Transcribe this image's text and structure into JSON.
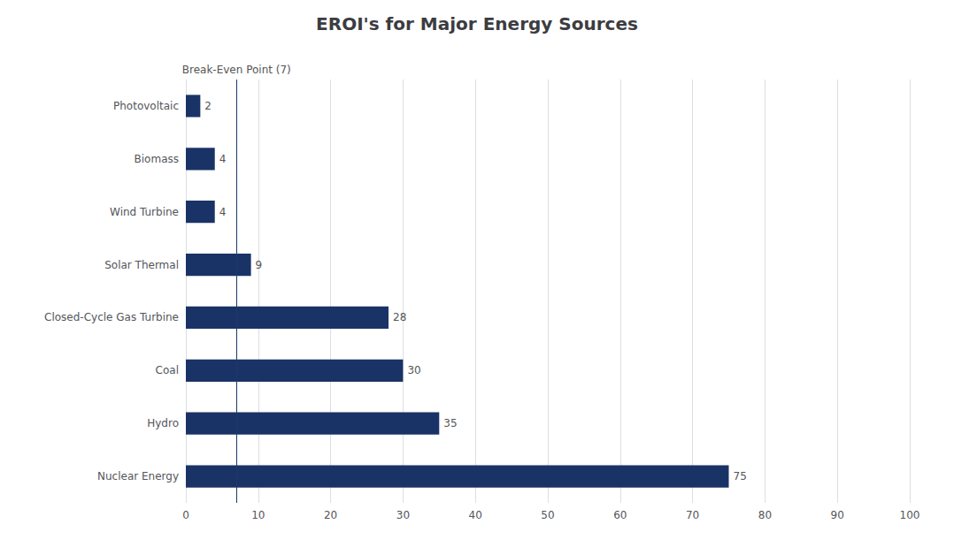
{
  "chart_data": {
    "type": "bar",
    "orientation": "horizontal",
    "title": "EROI's for Major Energy Sources",
    "categories": [
      "Nuclear Energy",
      "Hydro",
      "Coal",
      "Closed-Cycle Gas Turbine",
      "Solar Thermal",
      "Wind Turbine",
      "Biomass",
      "Photovoltaic"
    ],
    "values": [
      75,
      35,
      30,
      28,
      9,
      4,
      4,
      2
    ],
    "color": "#1a3366",
    "xlim": [
      0,
      100
    ],
    "xticks": [
      0,
      10,
      20,
      30,
      40,
      50,
      60,
      70,
      80,
      90,
      100
    ],
    "grid": true,
    "data_labels": true,
    "annotations": [
      {
        "x": 7,
        "text": "Break-Even Point (7)",
        "color": "#1a3a6b"
      }
    ]
  }
}
